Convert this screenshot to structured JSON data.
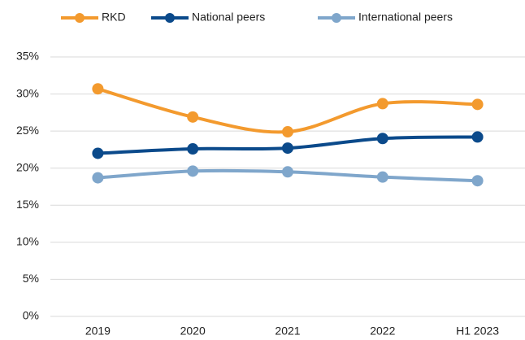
{
  "chart_data": {
    "type": "line",
    "categories": [
      "2019",
      "2020",
      "2021",
      "2022",
      "H1 2023"
    ],
    "series": [
      {
        "name": "RKD",
        "color": "#f39a2e",
        "values": [
          30.7,
          26.9,
          24.9,
          28.7,
          28.6
        ]
      },
      {
        "name": "National peers",
        "color": "#0b4a8b",
        "values": [
          22.0,
          22.6,
          22.7,
          24.0,
          24.2
        ]
      },
      {
        "name": "International peers",
        "color": "#7fa6cb",
        "values": [
          18.7,
          19.6,
          19.5,
          18.8,
          18.3
        ]
      }
    ],
    "ylim": [
      0,
      35
    ],
    "yticks": [
      {
        "value": 0,
        "label": "0%"
      },
      {
        "value": 5,
        "label": "5%"
      },
      {
        "value": 10,
        "label": "10%"
      },
      {
        "value": 15,
        "label": "15%"
      },
      {
        "value": 20,
        "label": "20%"
      },
      {
        "value": 25,
        "label": "25%"
      },
      {
        "value": 30,
        "label": "30%"
      },
      {
        "value": 35,
        "label": "35%"
      }
    ],
    "grid": true,
    "smooth": true,
    "legend": "top"
  }
}
